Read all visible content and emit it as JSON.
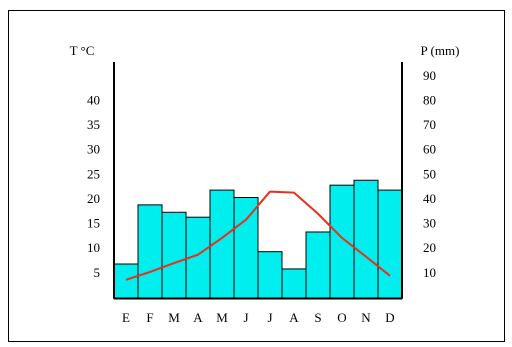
{
  "chart_data": {
    "type": "combo",
    "ylabel": "T °C",
    "y2label": "P (mm)",
    "categories": [
      "E",
      "F",
      "M",
      "A",
      "M",
      "J",
      "J",
      "A",
      "S",
      "O",
      "N",
      "D"
    ],
    "ylim": [
      0,
      48
    ],
    "yticks": [
      5,
      10,
      15,
      20,
      25,
      30,
      35,
      40
    ],
    "y2lim": [
      0,
      96
    ],
    "y2ticks": [
      10,
      20,
      30,
      40,
      50,
      60,
      70,
      80,
      90
    ],
    "series": [
      {
        "type": "bar",
        "axis": "y2",
        "color": "#00eeee",
        "values": [
          14,
          38,
          35,
          33,
          44,
          41,
          19,
          12,
          27,
          46,
          48,
          44
        ]
      },
      {
        "type": "line",
        "color": "#e8301c",
        "values": [
          3.8,
          5.4,
          7.2,
          8.9,
          12.3,
          16,
          21.7,
          21.5,
          17.2,
          12.3,
          8.5,
          4.6
        ]
      }
    ]
  }
}
